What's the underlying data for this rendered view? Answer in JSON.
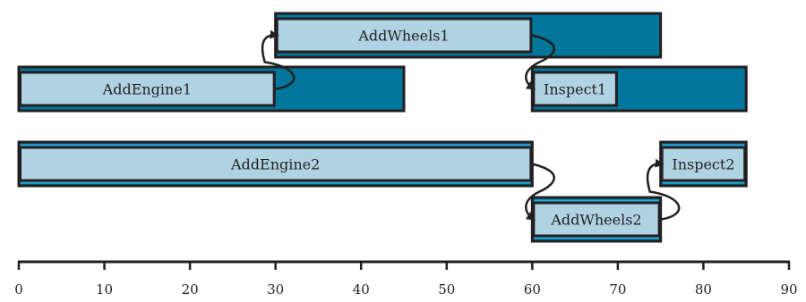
{
  "colors": {
    "slack_fill": "#00769a",
    "task_fill": "#b0d3e3",
    "outline": "#231f20",
    "stripe": "#29a9e0"
  },
  "axis": {
    "min": 0,
    "max": 90,
    "ticks": [
      "0",
      "10",
      "20",
      "30",
      "40",
      "50",
      "60",
      "70",
      "80",
      "90"
    ]
  },
  "tasks": [
    {
      "id": "addwheels1",
      "label": "AddWheels1",
      "start": 30,
      "end": 60,
      "window_end": 75,
      "row": 0
    },
    {
      "id": "addengine1",
      "label": "AddEngine1",
      "start": 0,
      "end": 30,
      "window_end": 45,
      "row": 1
    },
    {
      "id": "inspect1",
      "label": "Inspect1",
      "start": 60,
      "end": 70,
      "window_end": 85,
      "row": 1
    },
    {
      "id": "addengine2",
      "label": "AddEngine2",
      "start": 0,
      "end": 60,
      "window_end": 60,
      "row": 2
    },
    {
      "id": "addwheels2",
      "label": "AddWheels2",
      "start": 60,
      "end": 75,
      "window_end": 75,
      "row": 3
    },
    {
      "id": "inspect2",
      "label": "Inspect2",
      "start": 75,
      "end": 85,
      "window_end": 85,
      "row": 2
    }
  ],
  "dependencies": [
    {
      "from": "addengine1",
      "to": "addwheels1"
    },
    {
      "from": "addwheels1",
      "to": "inspect1"
    },
    {
      "from": "addengine2",
      "to": "addwheels2"
    },
    {
      "from": "addwheels2",
      "to": "inspect2"
    }
  ]
}
